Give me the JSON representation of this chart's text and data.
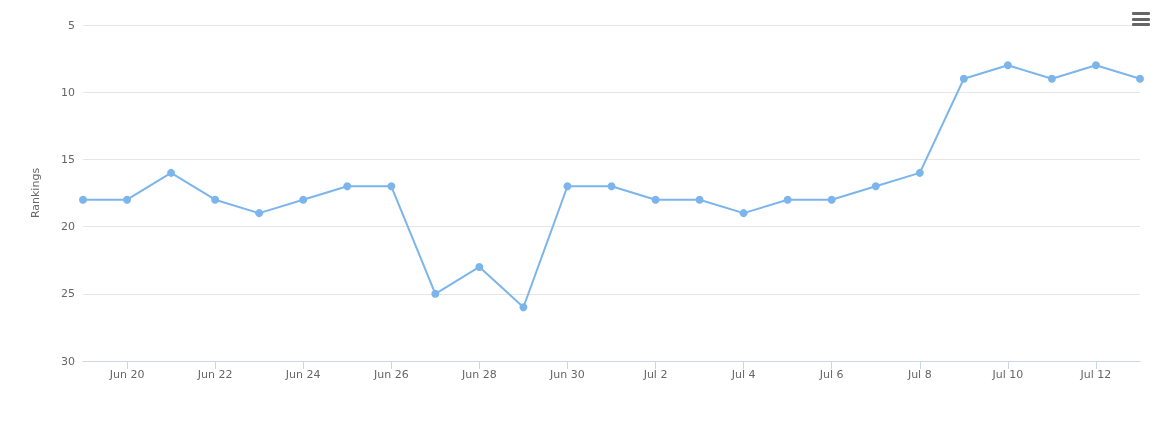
{
  "chart_data": {
    "type": "line",
    "ylabel": "Rankings",
    "x": [
      "--06-19",
      "--06-20",
      "--06-21",
      "--06-22",
      "--06-23",
      "--06-24",
      "--06-25",
      "--06-26",
      "--06-27",
      "--06-28",
      "--06-29",
      "--06-30",
      "--07-01",
      "--07-02",
      "--07-03",
      "--07-04",
      "--07-05",
      "--07-06",
      "--07-07",
      "--07-08",
      "--07-09",
      "--07-10",
      "--07-11",
      "--07-12",
      "--07-13"
    ],
    "series": [
      {
        "color": "#7cb5ec",
        "values": [
          18,
          18,
          16,
          18,
          19,
          18,
          17,
          17,
          25,
          23,
          26,
          17,
          17,
          18,
          18,
          19,
          18,
          18,
          17,
          16,
          9,
          8,
          9,
          8,
          9
        ]
      }
    ],
    "xlim": [
      "--06-19",
      "--07-13"
    ],
    "xticks": [
      {
        "value": "--06-20",
        "label": "Jun 20"
      },
      {
        "value": "--06-22",
        "label": "Jun 22"
      },
      {
        "value": "--06-24",
        "label": "Jun 24"
      },
      {
        "value": "--06-26",
        "label": "Jun 26"
      },
      {
        "value": "--06-28",
        "label": "Jun 28"
      },
      {
        "value": "--06-30",
        "label": "Jun 30"
      },
      {
        "value": "--07-02",
        "label": "Jul 2"
      },
      {
        "value": "--07-04",
        "label": "Jul 4"
      },
      {
        "value": "--07-06",
        "label": "Jul 6"
      },
      {
        "value": "--07-08",
        "label": "Jul 8"
      },
      {
        "value": "--07-10",
        "label": "Jul 10"
      },
      {
        "value": "--07-12",
        "label": "Jul 12"
      }
    ],
    "ylim": [
      30,
      5
    ],
    "yticks": [
      5,
      10,
      15,
      20,
      25,
      30
    ],
    "grid": "y",
    "marker": "circle",
    "line_style": "solid"
  }
}
